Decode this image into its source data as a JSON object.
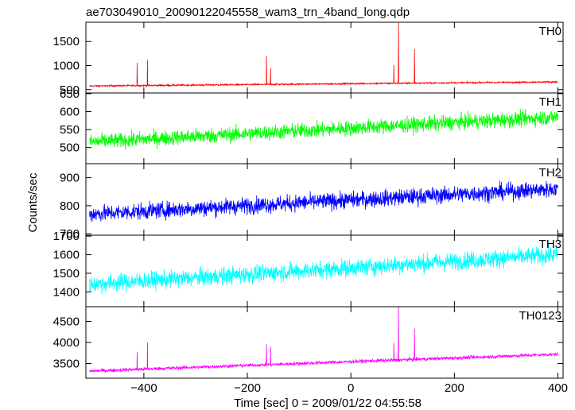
{
  "chart_data": {
    "type": "line",
    "title": "ae703049010_20090122045558_wam3_trn_4band_long.qdp",
    "xlabel": "Time [sec] 0 = 2009/01/22 04:55:58",
    "ylabel": "Counts/sec",
    "xlim": [
      -512,
      410
    ],
    "xticks": [
      -400,
      -200,
      0,
      200,
      400
    ],
    "grid": false,
    "panels": [
      {
        "name": "TH0",
        "color": "#ff0000",
        "ylim": [
          430,
          1900
        ],
        "yticks": [
          500,
          1000,
          1500
        ],
        "ytick_labels": [
          "500",
          "1000",
          "1500"
        ],
        "baseline_start": 575,
        "baseline_end": 660,
        "noise": 15,
        "spikes": [
          {
            "x": -413,
            "y": 1060
          },
          {
            "x": -393,
            "y": 1120
          },
          {
            "x": -163,
            "y": 1200
          },
          {
            "x": -155,
            "y": 950
          },
          {
            "x": 83,
            "y": 1010
          },
          {
            "x": 92,
            "y": 1910
          },
          {
            "x": 123,
            "y": 1340
          }
        ]
      },
      {
        "name": "TH1",
        "color": "#00ff00",
        "ylim": [
          455,
          652
        ],
        "yticks": [
          500,
          550,
          600,
          650
        ],
        "ytick_labels": [
          "500",
          "550",
          "600",
          "650"
        ],
        "baseline_start": 515,
        "baseline_end": 585,
        "noise": 20,
        "spikes": []
      },
      {
        "name": "TH2",
        "color": "#0000ff",
        "ylim": [
          695,
          950
        ],
        "yticks": [
          700,
          800,
          900
        ],
        "ytick_labels": [
          "700",
          "800",
          "900"
        ],
        "baseline_start": 770,
        "baseline_end": 860,
        "noise": 28,
        "spikes": []
      },
      {
        "name": "TH3",
        "color": "#00ffff",
        "ylim": [
          1320,
          1705
        ],
        "yticks": [
          1400,
          1500,
          1600,
          1700
        ],
        "ytick_labels": [
          "1400",
          "1500",
          "1600",
          "1700"
        ],
        "baseline_start": 1440,
        "baseline_end": 1600,
        "noise": 45,
        "spikes": []
      },
      {
        "name": "TH0123",
        "color": "#ff00ff",
        "ylim": [
          3150,
          4850
        ],
        "yticks": [
          3500,
          4000,
          4500
        ],
        "ytick_labels": [
          "3500",
          "4000",
          "4500"
        ],
        "baseline_start": 3320,
        "baseline_end": 3720,
        "noise": 40,
        "spikes": [
          {
            "x": -413,
            "y": 3780
          },
          {
            "x": -393,
            "y": 4000
          },
          {
            "x": -163,
            "y": 3960
          },
          {
            "x": -155,
            "y": 3900
          },
          {
            "x": 83,
            "y": 3990
          },
          {
            "x": 92,
            "y": 4850
          },
          {
            "x": 123,
            "y": 4330
          }
        ]
      }
    ]
  }
}
